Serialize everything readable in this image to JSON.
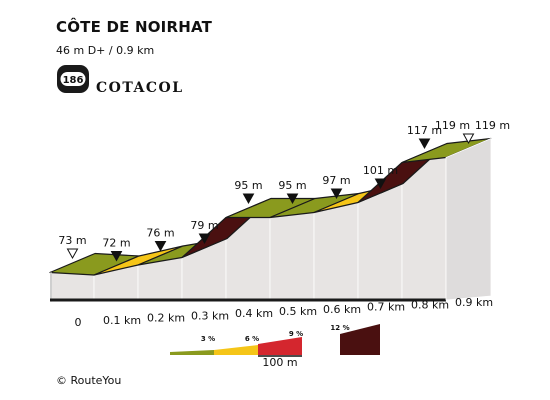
{
  "title": "CÔTE DE NOIRHAT",
  "subtitle": "46 m D+ / 0.9 km",
  "logo": {
    "number": "186",
    "name": "COTACOL"
  },
  "copyright": "© RouteYou",
  "legend": {
    "labels": [
      "3 %",
      "6 %",
      "9 %",
      "12 %"
    ],
    "scale_label": "100 m",
    "colors": [
      "#8a9a1e",
      "#f5c518",
      "#d4262e",
      "#4a1010"
    ]
  },
  "colors": {
    "gentle": "#8a9a1e",
    "moderate": "#f5c518",
    "steep": "#4a1010",
    "wall": "#e7e4e3",
    "base_dark": "#1a1a1a"
  },
  "chart_data": {
    "type": "area",
    "title": "CÔTE DE NOIRHAT",
    "x_unit": "km",
    "y_unit": "m",
    "x": [
      0,
      0.1,
      0.2,
      0.3,
      0.4,
      0.5,
      0.6,
      0.7,
      0.8,
      0.9
    ],
    "elevation": [
      73,
      72,
      76,
      79,
      95,
      95,
      97,
      101,
      117,
      119
    ],
    "point_labels": [
      "73 m",
      "72 m",
      "76 m",
      "79 m",
      "95 m",
      "95 m",
      "97 m",
      "101 m",
      "117 m",
      "119 m"
    ],
    "end_label": "119 m",
    "x_tick_labels": [
      "0",
      "0.1 km",
      "0.2 km",
      "0.3 km",
      "0.4 km",
      "0.5 km",
      "0.6 km",
      "0.7 km",
      "0.8 km",
      "0.9 km"
    ],
    "segment_colors": [
      "#8a9a1e",
      "#f5c518",
      "#8a9a1e",
      "#4a1010",
      "#8a9a1e",
      "#8a9a1e",
      "#f5c518",
      "#4a1010",
      "#8a9a1e"
    ]
  }
}
